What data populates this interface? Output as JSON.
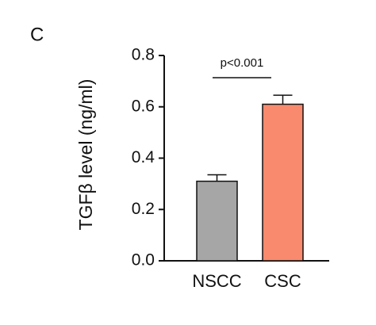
{
  "chart_data": {
    "type": "bar",
    "panel_label": "C",
    "ylabel": "TGFβ level (ng/ml)",
    "categories": [
      "NSCC",
      "CSC"
    ],
    "values": [
      0.31,
      0.61
    ],
    "errors": [
      0.025,
      0.035
    ],
    "colors": [
      "#a6a6a6",
      "#f98a6e"
    ],
    "ylim": [
      0,
      0.8
    ],
    "yticks": [
      {
        "value": 0,
        "label": "0.0"
      },
      0.2,
      0.4,
      0.6,
      0.8
    ],
    "annotation": "p<0.001"
  }
}
